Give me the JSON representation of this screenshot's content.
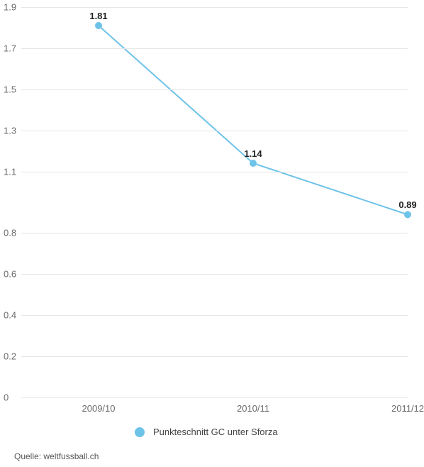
{
  "chart": {
    "type": "line",
    "background_color": "#ffffff",
    "grid_color": "#e6e6e6",
    "axis_label_color": "#6b6b6b",
    "axis_fontsize": 13,
    "data_label_color": "#222222",
    "data_label_fontsize": 13,
    "data_label_fontweight": "700",
    "ylim_min": 0,
    "ylim_max": 1.9,
    "yticks": [
      0,
      0.2,
      0.4,
      0.6,
      0.8,
      1.1,
      1.3,
      1.5,
      1.7,
      1.9
    ],
    "ytick_labels": [
      "0",
      "0.2",
      "0.4",
      "0.6",
      "0.8",
      "1.1",
      "1.3",
      "1.5",
      "1.7",
      "1.9"
    ],
    "categories": [
      "2009/10",
      "2010/11",
      "2011/12"
    ],
    "values": [
      1.81,
      1.14,
      0.89
    ],
    "value_labels": [
      "1.81",
      "1.14",
      "0.89"
    ],
    "x_positions_pct": [
      20,
      60,
      100
    ],
    "line_color": "#6ec3e8",
    "line_width": 2,
    "marker_radius": 5,
    "marker_fill": "#6ec3e8"
  },
  "legend": {
    "label": "Punkteschnitt GC unter Sforza",
    "dot_color": "#6ec3e8"
  },
  "source": {
    "text": "Quelle: weltfussball.ch"
  }
}
